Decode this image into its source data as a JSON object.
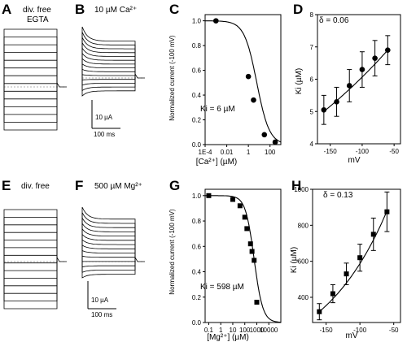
{
  "panels": {
    "A": {
      "letter": "A",
      "label1": "div. free",
      "label2": "EGTA"
    },
    "B": {
      "letter": "B",
      "label": "10 µM Ca²⁺",
      "scale_i": "10 µA",
      "scale_t": "100 ms"
    },
    "E": {
      "letter": "E",
      "label": "div. free"
    },
    "F": {
      "letter": "F",
      "label": "500 µM Mg²⁺",
      "scale_i": "10 µA",
      "scale_t": "100 ms"
    }
  },
  "chart_data": [
    {
      "id": "C",
      "letter": "C",
      "type": "scatter",
      "xlabel": "[Ca²⁺] (µM)",
      "ylabel": "Normalized current (-100 mV)",
      "annotation": "Ki = 6 µM",
      "xscale": "log",
      "xlim": [
        0.0001,
        1000
      ],
      "ylim": [
        0,
        1.05
      ],
      "xticks": [
        0.0001,
        0.01,
        1,
        100
      ],
      "xticklabels": [
        "1E-4",
        "0.01",
        "1",
        "100"
      ],
      "yticks": [
        0.0,
        0.2,
        0.4,
        0.6,
        0.8,
        1.0
      ],
      "yticklabels": [
        "0.0",
        "0.2",
        "0.4",
        "0.6",
        "0.8",
        "1.0"
      ],
      "points": [
        {
          "x": 0.001,
          "y": 1.0
        },
        {
          "x": 1,
          "y": 0.55
        },
        {
          "x": 3,
          "y": 0.36
        },
        {
          "x": 30,
          "y": 0.08
        },
        {
          "x": 300,
          "y": 0.02
        }
      ],
      "fit": {
        "model": "hill",
        "ki": 6,
        "n": 0.75
      }
    },
    {
      "id": "D",
      "letter": "D",
      "type": "scatter",
      "xlabel": "mV",
      "ylabel": "Ki (µM)",
      "annotation": "δ = 0.06",
      "xlim": [
        -170,
        -40
      ],
      "ylim": [
        4,
        8
      ],
      "xticks": [
        -150,
        -100,
        -50
      ],
      "xticklabels": [
        "-150",
        "-100",
        "-50"
      ],
      "yticks": [
        4,
        5,
        6,
        7,
        8
      ],
      "yticklabels": [
        "4",
        "5",
        "6",
        "7",
        "8"
      ],
      "points": [
        {
          "x": -160,
          "y": 5.05,
          "err": 0.45
        },
        {
          "x": -140,
          "y": 5.3,
          "err": 0.45
        },
        {
          "x": -120,
          "y": 5.8,
          "err": 0.5
        },
        {
          "x": -100,
          "y": 6.3,
          "err": 0.55
        },
        {
          "x": -80,
          "y": 6.65,
          "err": 0.55
        },
        {
          "x": -60,
          "y": 6.9,
          "err": 0.45
        }
      ],
      "fit": {
        "x": [
          -160,
          -60
        ],
        "y": [
          5.0,
          6.9
        ]
      }
    },
    {
      "id": "G",
      "letter": "G",
      "type": "scatter",
      "xlabel": "[Mg²⁺] (µM)",
      "ylabel": "Normalized current (-100 mV)",
      "annotation": "Ki = 598 µM",
      "xscale": "log",
      "xlim": [
        0.05,
        100000
      ],
      "ylim": [
        0,
        1.05
      ],
      "xticks": [
        0.1,
        1,
        10,
        100,
        1000,
        10000
      ],
      "xticklabels": [
        "0.1",
        "1",
        "10",
        "100",
        "1000",
        "10000"
      ],
      "yticks": [
        0.0,
        0.2,
        0.4,
        0.6,
        0.8,
        1.0
      ],
      "yticklabels": [
        "0.0",
        "0.2",
        "0.4",
        "0.6",
        "0.8",
        "1.0"
      ],
      "points": [
        {
          "x": 0.1,
          "y": 1.0
        },
        {
          "x": 10,
          "y": 0.97
        },
        {
          "x": 40,
          "y": 0.92
        },
        {
          "x": 100,
          "y": 0.83
        },
        {
          "x": 150,
          "y": 0.74
        },
        {
          "x": 300,
          "y": 0.62
        },
        {
          "x": 400,
          "y": 0.56
        },
        {
          "x": 600,
          "y": 0.49
        },
        {
          "x": 1000,
          "y": 0.16
        }
      ],
      "fit": {
        "model": "hill",
        "ki": 598,
        "n": 1.2
      }
    },
    {
      "id": "H",
      "letter": "H",
      "type": "scatter",
      "xlabel": "mV",
      "ylabel": "Ki (µM)",
      "annotation": "δ = 0.13",
      "xlim": [
        -170,
        -40
      ],
      "ylim": [
        260,
        1000
      ],
      "xticks": [
        -150,
        -100,
        -50
      ],
      "xticklabels": [
        "-150",
        "-100",
        "-50"
      ],
      "yticks": [
        400,
        600,
        800,
        1000
      ],
      "yticklabels": [
        "400",
        "600",
        "800",
        "1000"
      ],
      "points": [
        {
          "x": -160,
          "y": 320,
          "err": 45
        },
        {
          "x": -140,
          "y": 420,
          "err": 50
        },
        {
          "x": -120,
          "y": 530,
          "err": 60
        },
        {
          "x": -100,
          "y": 620,
          "err": 75
        },
        {
          "x": -80,
          "y": 750,
          "err": 90
        },
        {
          "x": -60,
          "y": 875,
          "err": 110
        }
      ],
      "fit": {
        "x": [
          -160,
          -60
        ],
        "y": [
          320,
          880
        ]
      }
    }
  ]
}
